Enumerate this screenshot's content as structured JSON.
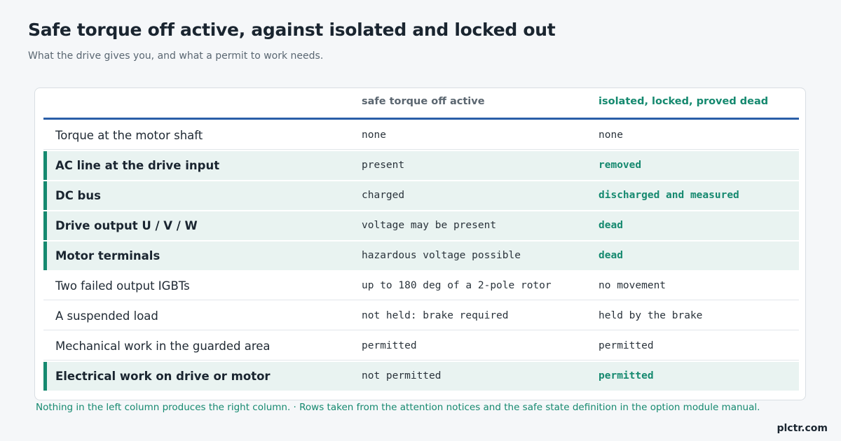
{
  "title": "Safe torque off active, against isolated and locked out",
  "subtitle": "What the drive gives you, and what a permit to work needs.",
  "table": {
    "headers": [
      "",
      "safe torque off active",
      "isolated, locked, proved dead"
    ],
    "rows": [
      {
        "label": "Torque at the motor shaft",
        "sto": "none",
        "isolated": "none",
        "highlight": false
      },
      {
        "label": "AC line at the drive input",
        "sto": "present",
        "isolated": "removed",
        "highlight": true
      },
      {
        "label": "DC bus",
        "sto": "charged",
        "isolated": "discharged and measured",
        "highlight": true
      },
      {
        "label": "Drive output U / V / W",
        "sto": "voltage may be present",
        "isolated": "dead",
        "highlight": true
      },
      {
        "label": "Motor terminals",
        "sto": "hazardous voltage possible",
        "isolated": "dead",
        "highlight": true
      },
      {
        "label": "Two failed output IGBTs",
        "sto": "up to 180 deg of a 2-pole rotor",
        "isolated": "no movement",
        "highlight": false
      },
      {
        "label": "A suspended load",
        "sto": "not held: brake required",
        "isolated": "held by the brake",
        "highlight": false
      },
      {
        "label": "Mechanical work in the guarded area",
        "sto": "permitted",
        "isolated": "permitted",
        "highlight": false
      },
      {
        "label": "Electrical work on drive or motor",
        "sto": "not permitted",
        "isolated": "permitted",
        "highlight": true
      }
    ]
  },
  "footnote": "Nothing in the left column produces the right column. · Rows taken from the attention notices and the safe state definition in the option module manual.",
  "brand": "plctr.com",
  "colors": {
    "accent": "#15896f",
    "header_rule": "#2a5ea8",
    "highlight_bg": "#e9f3f1"
  }
}
